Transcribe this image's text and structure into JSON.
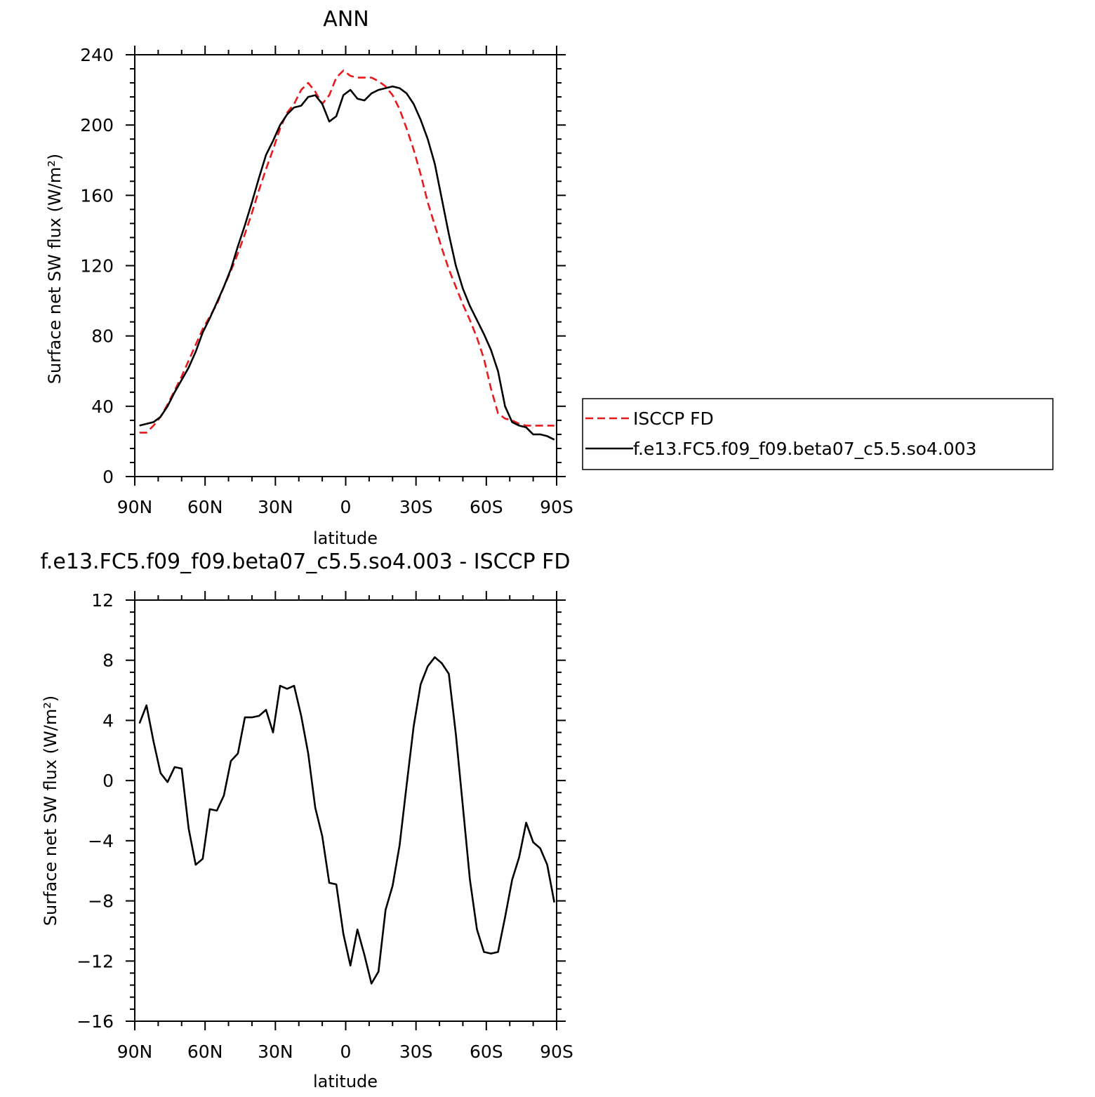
{
  "chart_data": [
    {
      "type": "line",
      "title": "ANN",
      "xlabel": "latitude",
      "ylabel": "Surface net SW flux (W/m²)",
      "xlim": [
        90,
        -90
      ],
      "ylim": [
        0,
        240
      ],
      "xticks": [
        90,
        60,
        30,
        0,
        -30,
        -60,
        -90
      ],
      "xtick_labels": [
        "90N",
        "60N",
        "30N",
        "0",
        "30S",
        "60S",
        "90S"
      ],
      "yticks": [
        0,
        40,
        80,
        120,
        160,
        200,
        240
      ],
      "ytick_labels": [
        "0",
        "40",
        "80",
        "120",
        "160",
        "200",
        "240"
      ],
      "legend": {
        "placement": "right",
        "entries": [
          "ISCCP FD",
          "f.e13.FC5.f09_f09.beta07_c5.5.so4.003"
        ]
      },
      "series": [
        {
          "name": "ISCCP FD",
          "color": "#e8191b",
          "style": "dashed",
          "x": [
            88,
            85,
            82,
            79,
            76,
            73,
            70,
            67,
            64,
            61,
            58,
            55,
            52,
            49,
            46,
            43,
            40,
            37,
            34,
            31,
            28,
            25,
            22,
            19,
            16,
            13,
            10,
            7,
            4,
            1,
            -2,
            -5,
            -8,
            -11,
            -14,
            -17,
            -20,
            -23,
            -26,
            -29,
            -32,
            -35,
            -38,
            -41,
            -44,
            -47,
            -50,
            -53,
            -56,
            -59,
            -62,
            -65,
            -68,
            -71,
            -74,
            -77,
            -80,
            -83,
            -86,
            -89
          ],
          "y": [
            25,
            25,
            29,
            34,
            41,
            49,
            57,
            66,
            75,
            84,
            91,
            98,
            108,
            117,
            127,
            138,
            150,
            163,
            175,
            186,
            198,
            207,
            212,
            220,
            224,
            219,
            212,
            217,
            227,
            231,
            228,
            227,
            227,
            227,
            225,
            222,
            217,
            209,
            198,
            186,
            172,
            156,
            143,
            130,
            118,
            108,
            98,
            89,
            79,
            67,
            50,
            36,
            33,
            32,
            30,
            29,
            29,
            29,
            29,
            29
          ]
        },
        {
          "name": "f.e13.FC5.f09_f09.beta07_c5.5.so4.003",
          "color": "#000000",
          "style": "solid",
          "x": [
            88,
            85,
            82,
            79,
            76,
            73,
            70,
            67,
            64,
            61,
            58,
            55,
            52,
            49,
            46,
            43,
            40,
            37,
            34,
            31,
            28,
            25,
            22,
            19,
            16,
            13,
            10,
            7,
            4,
            1,
            -2,
            -5,
            -8,
            -11,
            -14,
            -17,
            -20,
            -23,
            -26,
            -29,
            -32,
            -35,
            -38,
            -41,
            -44,
            -47,
            -50,
            -53,
            -56,
            -59,
            -62,
            -65,
            -68,
            -71,
            -74,
            -77,
            -80,
            -83,
            -86,
            -89
          ],
          "y": [
            29,
            30,
            31,
            34,
            40,
            48,
            55,
            62,
            71,
            82,
            90,
            99,
            108,
            118,
            131,
            143,
            156,
            170,
            183,
            191,
            200,
            206,
            210,
            211,
            216,
            217,
            212,
            202,
            205,
            217,
            220,
            215,
            214,
            218,
            220,
            221,
            222,
            221,
            218,
            212,
            203,
            192,
            178,
            158,
            138,
            120,
            107,
            97,
            89,
            81,
            72,
            60,
            40,
            31,
            29,
            28,
            24,
            24,
            23,
            21
          ]
        }
      ]
    },
    {
      "type": "line",
      "title": "f.e13.FC5.f09_f09.beta07_c5.5.so4.003 - ISCCP FD",
      "xlabel": "latitude",
      "ylabel": "Surface net SW flux (W/m²)",
      "xlim": [
        90,
        -90
      ],
      "ylim": [
        -16,
        12
      ],
      "xticks": [
        90,
        60,
        30,
        0,
        -30,
        -60,
        -90
      ],
      "xtick_labels": [
        "90N",
        "60N",
        "30N",
        "0",
        "30S",
        "60S",
        "90S"
      ],
      "yticks": [
        -16,
        -12,
        -8,
        -4,
        0,
        4,
        8,
        12
      ],
      "ytick_labels": [
        "−16",
        "−12",
        "−8",
        "−4",
        "0",
        "4",
        "8",
        "12"
      ],
      "series": [
        {
          "color": "#000000",
          "style": "solid",
          "x": [
            88,
            85,
            82,
            79,
            76,
            73,
            70,
            67,
            64,
            61,
            58,
            55,
            52,
            49,
            46,
            43,
            40,
            37,
            34,
            31,
            28,
            25,
            22,
            19,
            16,
            13,
            10,
            7,
            4,
            1,
            -2,
            -5,
            -8,
            -11,
            -14,
            -17,
            -20,
            -23,
            -26,
            -29,
            -32,
            -35,
            -38,
            -41,
            -44,
            -47,
            -50,
            -53,
            -56,
            -59,
            -62,
            -65,
            -68,
            -71,
            -74,
            -77,
            -80,
            -83,
            -86,
            -89
          ],
          "y": [
            3.8,
            5.0,
            2.6,
            0.5,
            -0.1,
            0.9,
            0.8,
            -3.2,
            -5.6,
            -5.2,
            -1.9,
            -2.0,
            -1.0,
            1.3,
            1.8,
            4.2,
            4.2,
            4.3,
            4.7,
            3.2,
            6.3,
            6.1,
            6.3,
            4.3,
            1.8,
            -1.8,
            -3.7,
            -6.8,
            -6.9,
            -10.2,
            -12.3,
            -9.9,
            -11.6,
            -13.5,
            -12.7,
            -8.6,
            -7.0,
            -4.3,
            -0.3,
            3.6,
            6.4,
            7.6,
            8.2,
            7.8,
            7.1,
            3.1,
            -1.7,
            -6.6,
            -9.9,
            -11.4,
            -11.5,
            -11.4,
            -9.1,
            -6.6,
            -5.1,
            -2.8,
            -4.1,
            -4.5,
            -5.6,
            -8.1
          ]
        }
      ]
    }
  ]
}
